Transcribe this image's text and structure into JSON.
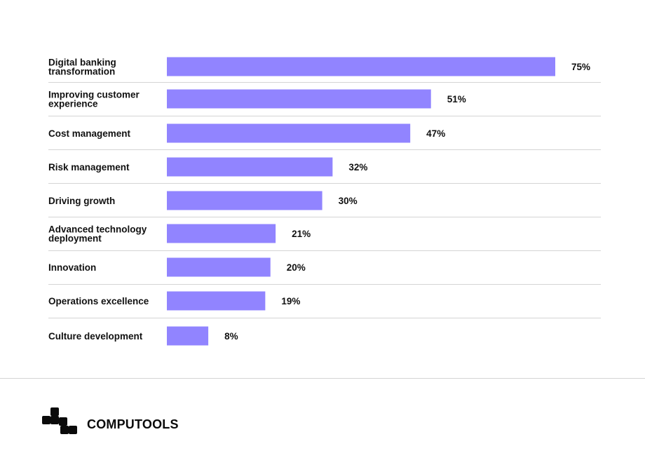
{
  "chart_data": {
    "type": "bar",
    "orientation": "horizontal",
    "categories": [
      [
        "Digital banking",
        "transformation"
      ],
      [
        "Improving customer",
        "experience"
      ],
      [
        "Cost management"
      ],
      [
        "Risk management"
      ],
      [
        "Driving growth"
      ],
      [
        "Advanced technology",
        "deployment"
      ],
      [
        "Innovation"
      ],
      [
        "Operations excellence"
      ],
      [
        "Culture development"
      ]
    ],
    "values": [
      75,
      51,
      47,
      32,
      30,
      21,
      20,
      19,
      8
    ],
    "value_labels": [
      "75%",
      "51%",
      "47%",
      "32%",
      "30%",
      "21%",
      "20%",
      "19%",
      "8%"
    ],
    "unit": "%",
    "xlim": [
      0,
      75
    ],
    "bar_color": "#9184ff",
    "separator_color": "#d4d4d4",
    "grid": false,
    "legend": "none"
  },
  "brand": {
    "name": "COMPUTOOLS",
    "logo_icon": "computools-logo-icon"
  }
}
